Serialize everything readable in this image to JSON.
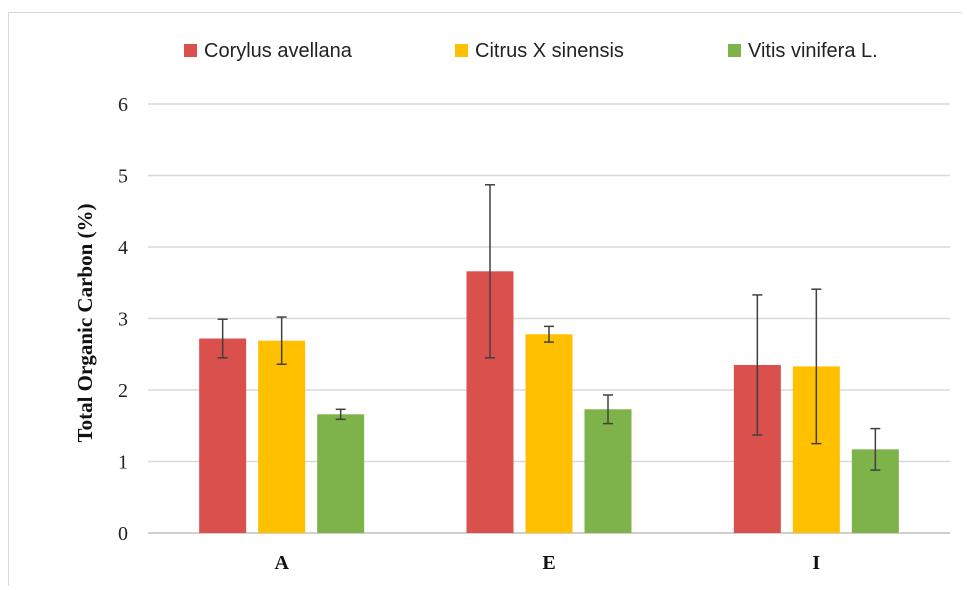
{
  "chart_data": {
    "type": "bar",
    "title": "",
    "xlabel": "",
    "ylabel": "Total Organic  Carbon  (%)",
    "ylim": [
      0,
      6
    ],
    "yticks": [
      0,
      1,
      2,
      3,
      4,
      5,
      6
    ],
    "grid": true,
    "legend_position": "top",
    "categories": [
      "A",
      "E",
      "I"
    ],
    "series": [
      {
        "name": "Corylus avellana",
        "color": "#d9504d",
        "values": [
          2.72,
          3.66,
          2.35
        ],
        "errors": [
          0.27,
          1.21,
          0.98
        ]
      },
      {
        "name": "Citrus X sinensis",
        "color": "#ffc000",
        "values": [
          2.69,
          2.78,
          2.33
        ],
        "errors": [
          0.33,
          0.11,
          1.08
        ]
      },
      {
        "name": "Vitis vinifera L.",
        "color": "#7eb34a",
        "values": [
          1.66,
          1.73,
          1.17
        ],
        "errors": [
          0.07,
          0.2,
          0.29
        ]
      }
    ]
  }
}
